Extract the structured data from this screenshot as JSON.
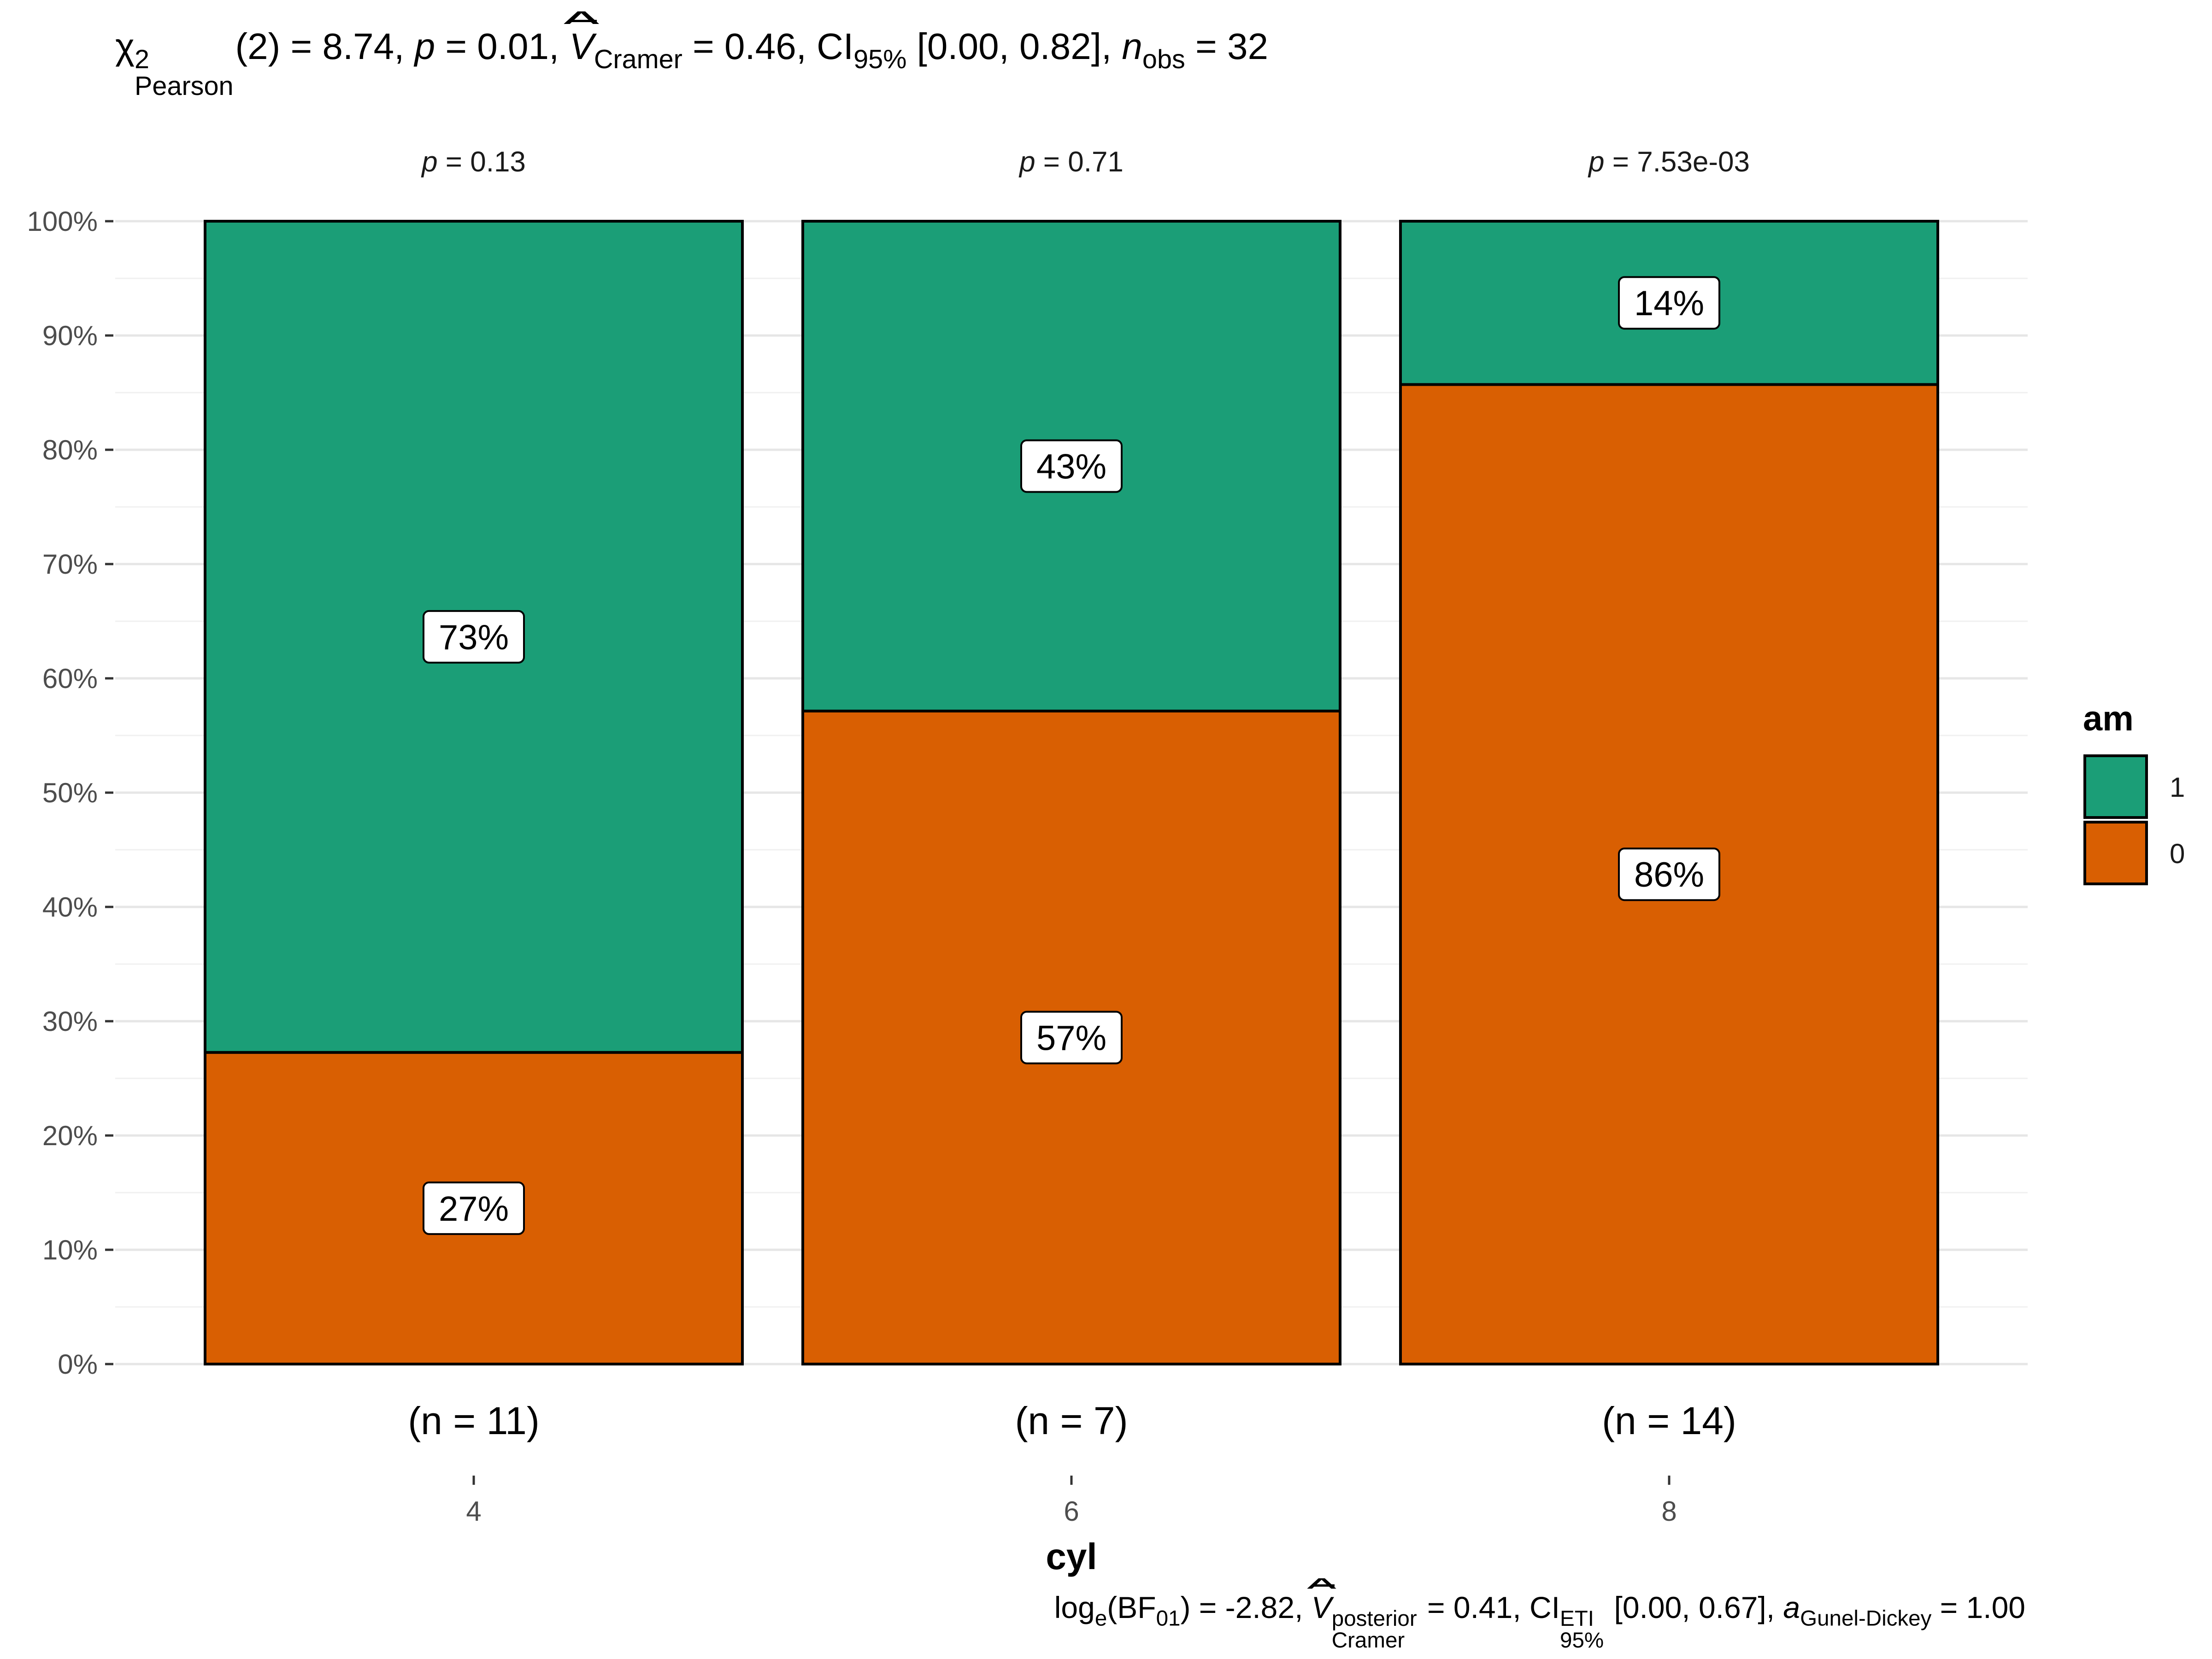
{
  "subtitle": {
    "chi_label": "χ",
    "chi_sup": "2",
    "chi_sub": "Pearson",
    "chi_rest": "(2) = 8.74, ",
    "p_label": "p",
    "p_rest": " = 0.01, ",
    "v_label": "V",
    "v_sub": "Cramer",
    "v_rest": " = 0.46, CI",
    "ci_sub": "95%",
    "ci_rest": " [0.00, 0.82], ",
    "n_label": "n",
    "n_sub": "obs",
    "n_rest": " = 32"
  },
  "caption": {
    "log_label": "log",
    "log_sub": "e",
    "bf_open": "(BF",
    "bf_sub": "01",
    "bf_rest": ") = -2.82, ",
    "v_label": "V",
    "v_sup": "posterior",
    "v_sub": "Cramer",
    "v_rest": " = 0.41, CI",
    "ci_sup": "ETI",
    "ci_sub": "95%",
    "ci_rest": " [0.00, 0.67], ",
    "a_label": "a",
    "a_sub": "Gunel-Dickey",
    "a_rest": " = 1.00"
  },
  "chart_data": {
    "type": "bar",
    "stacked": true,
    "percent": true,
    "categories": [
      "4",
      "6",
      "8"
    ],
    "xlabel": "cyl",
    "ylabel": "",
    "ylim": [
      0,
      100
    ],
    "yticks": [
      "0%",
      "10%",
      "20%",
      "30%",
      "40%",
      "50%",
      "60%",
      "70%",
      "80%",
      "90%",
      "100%"
    ],
    "series": [
      {
        "name": "0",
        "values": [
          27.27,
          57.14,
          85.71
        ],
        "labels": [
          "27%",
          "57%",
          "86%"
        ],
        "color": "#D95F02"
      },
      {
        "name": "1",
        "values": [
          72.73,
          42.86,
          14.29
        ],
        "labels": [
          "73%",
          "43%",
          "14%"
        ],
        "color": "#1B9E77"
      }
    ],
    "counts": [
      "(n = 11)",
      "(n = 7)",
      "(n = 14)"
    ],
    "facet_p": [
      {
        "label": "p",
        "value": " = 0.13"
      },
      {
        "label": "p",
        "value": " = 0.71"
      },
      {
        "label": "p",
        "value": " = 7.53e-03"
      }
    ],
    "legend": {
      "title": "am",
      "position": "right",
      "entries": [
        "1",
        "0"
      ]
    },
    "grid": true
  }
}
